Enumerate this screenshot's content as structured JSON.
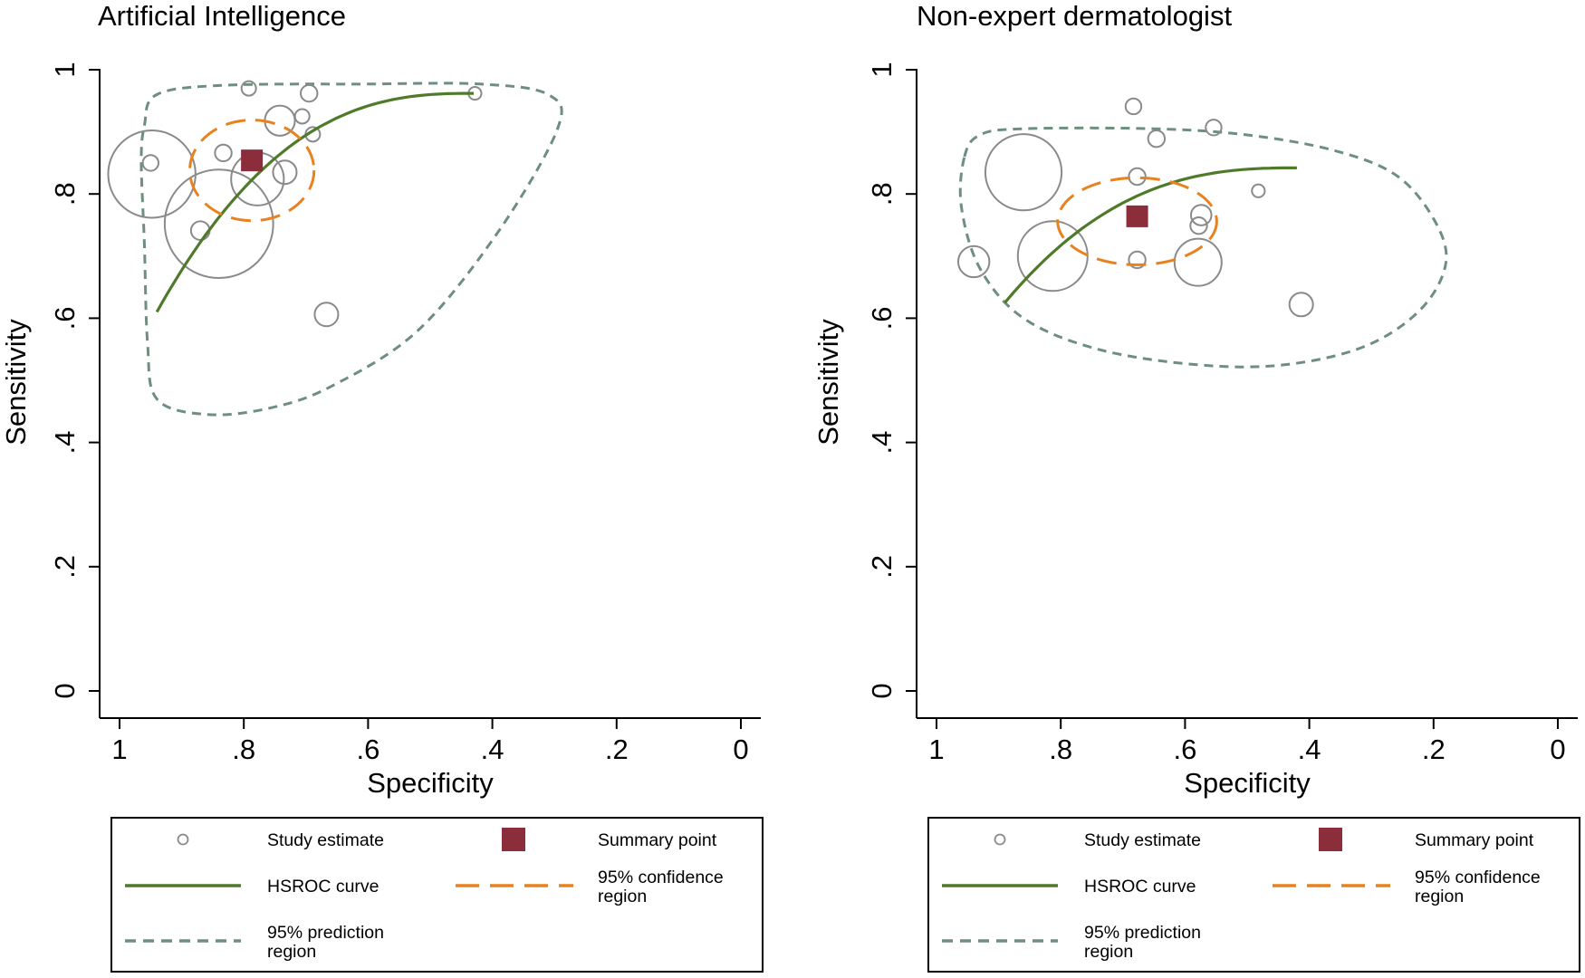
{
  "chart_data": [
    {
      "type": "scatter",
      "title": "Artificial Intelligence",
      "xlabel": "Specificity",
      "ylabel": "Sensitivity",
      "xlim": [
        1,
        0
      ],
      "ylim": [
        0,
        1
      ],
      "xticks": [
        "1",
        ".8",
        ".6",
        ".4",
        ".2",
        "0"
      ],
      "yticks": [
        "0",
        ".2",
        ".4",
        ".6",
        ".8",
        "1"
      ],
      "xtick_values": [
        1,
        0.8,
        0.6,
        0.4,
        0.2,
        0
      ],
      "ytick_values": [
        0,
        0.2,
        0.4,
        0.6,
        0.8,
        1
      ],
      "study_estimates": [
        {
          "spec": 0.792,
          "sens": 0.97,
          "weight": 1.5
        },
        {
          "spec": 0.695,
          "sens": 0.962,
          "weight": 2.0
        },
        {
          "spec": 0.428,
          "sens": 0.962,
          "weight": 1.2
        },
        {
          "spec": 0.742,
          "sens": 0.918,
          "weight": 6.5
        },
        {
          "spec": 0.706,
          "sens": 0.925,
          "weight": 1.5
        },
        {
          "spec": 0.689,
          "sens": 0.896,
          "weight": 1.5
        },
        {
          "spec": 0.833,
          "sens": 0.866,
          "weight": 2.0
        },
        {
          "spec": 0.95,
          "sens": 0.85,
          "weight": 1.8
        },
        {
          "spec": 0.948,
          "sens": 0.832,
          "weight": 55
        },
        {
          "spec": 0.778,
          "sens": 0.824,
          "weight": 20
        },
        {
          "spec": 0.734,
          "sens": 0.835,
          "weight": 4.0
        },
        {
          "spec": 0.84,
          "sens": 0.752,
          "weight": 85
        },
        {
          "spec": 0.87,
          "sens": 0.741,
          "weight": 2.5
        },
        {
          "spec": 0.667,
          "sens": 0.606,
          "weight": 4.0
        }
      ],
      "summary_point": {
        "spec": 0.787,
        "sens": 0.854
      },
      "hsroc_curve": {
        "spec_from": 0.94,
        "spec_to": 0.43,
        "sens_at_from": 0.61,
        "sens_at_to": 0.962
      },
      "confidence_region": {
        "center_spec": 0.787,
        "center_sens": 0.838,
        "half_width": 0.1,
        "half_height": 0.081
      },
      "prediction_region": [
        [
          0.96,
          0.91
        ],
        [
          0.94,
          0.96
        ],
        [
          0.83,
          0.975
        ],
        [
          0.6,
          0.977
        ],
        [
          0.42,
          0.977
        ],
        [
          0.31,
          0.96
        ],
        [
          0.295,
          0.905
        ],
        [
          0.39,
          0.74
        ],
        [
          0.52,
          0.58
        ],
        [
          0.66,
          0.49
        ],
        [
          0.76,
          0.455
        ],
        [
          0.86,
          0.445
        ],
        [
          0.94,
          0.47
        ],
        [
          0.955,
          0.56
        ],
        [
          0.96,
          0.72
        ],
        [
          0.965,
          0.85
        ]
      ]
    },
    {
      "type": "scatter",
      "title": "Non-expert dermatologist",
      "xlabel": "Specificity",
      "ylabel": "Sensitivity",
      "xlim": [
        1,
        0
      ],
      "ylim": [
        0,
        1
      ],
      "xticks": [
        "1",
        ".8",
        ".6",
        ".4",
        ".2",
        "0"
      ],
      "yticks": [
        "0",
        ".2",
        ".4",
        ".6",
        ".8",
        "1"
      ],
      "xtick_values": [
        1,
        0.8,
        0.6,
        0.4,
        0.2,
        0
      ],
      "ytick_values": [
        0,
        0.2,
        0.4,
        0.6,
        0.8,
        1
      ],
      "study_estimates": [
        {
          "spec": 0.683,
          "sens": 0.941,
          "weight": 1.8
        },
        {
          "spec": 0.554,
          "sens": 0.907,
          "weight": 1.8
        },
        {
          "spec": 0.646,
          "sens": 0.889,
          "weight": 2.0
        },
        {
          "spec": 0.86,
          "sens": 0.835,
          "weight": 42
        },
        {
          "spec": 0.677,
          "sens": 0.828,
          "weight": 2.0
        },
        {
          "spec": 0.482,
          "sens": 0.805,
          "weight": 1.2
        },
        {
          "spec": 0.574,
          "sens": 0.766,
          "weight": 3.0
        },
        {
          "spec": 0.578,
          "sens": 0.749,
          "weight": 2.0
        },
        {
          "spec": 0.813,
          "sens": 0.7,
          "weight": 35
        },
        {
          "spec": 0.677,
          "sens": 0.694,
          "weight": 2.0
        },
        {
          "spec": 0.579,
          "sens": 0.69,
          "weight": 16
        },
        {
          "spec": 0.94,
          "sens": 0.691,
          "weight": 7.0
        },
        {
          "spec": 0.413,
          "sens": 0.622,
          "weight": 4.0
        }
      ],
      "summary_point": {
        "spec": 0.677,
        "sens": 0.764
      },
      "hsroc_curve": {
        "spec_from": 0.89,
        "spec_to": 0.42,
        "sens_at_from": 0.625,
        "sens_at_to": 0.842
      },
      "confidence_region": {
        "center_spec": 0.677,
        "center_sens": 0.756,
        "half_width": 0.128,
        "half_height": 0.07
      },
      "prediction_region": [
        [
          0.955,
          0.86
        ],
        [
          0.93,
          0.895
        ],
        [
          0.86,
          0.905
        ],
        [
          0.65,
          0.905
        ],
        [
          0.5,
          0.895
        ],
        [
          0.36,
          0.87
        ],
        [
          0.26,
          0.83
        ],
        [
          0.2,
          0.76
        ],
        [
          0.18,
          0.69
        ],
        [
          0.22,
          0.615
        ],
        [
          0.31,
          0.555
        ],
        [
          0.44,
          0.525
        ],
        [
          0.58,
          0.525
        ],
        [
          0.74,
          0.55
        ],
        [
          0.86,
          0.6
        ],
        [
          0.93,
          0.68
        ],
        [
          0.96,
          0.78
        ]
      ]
    }
  ],
  "legend": {
    "study_estimate": "Study estimate",
    "summary_point": "Summary point",
    "hsroc_curve": "HSROC curve",
    "confidence_region_line1": "95% confidence",
    "confidence_region_line2": "region",
    "prediction_region_line1": "95% prediction",
    "prediction_region_line2": "region"
  },
  "colors": {
    "study_circle": "#8a8a8a",
    "summary_point": "#8b2d3a",
    "hsroc_curve": "#4f7a2a",
    "confidence_region": "#e8821f",
    "prediction_region": "#6e8f7e"
  }
}
